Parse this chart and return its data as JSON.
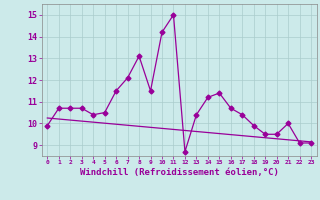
{
  "x": [
    0,
    1,
    2,
    3,
    4,
    5,
    6,
    7,
    8,
    9,
    10,
    11,
    12,
    13,
    14,
    15,
    16,
    17,
    18,
    19,
    20,
    21,
    22,
    23
  ],
  "y": [
    9.9,
    10.7,
    10.7,
    10.7,
    10.4,
    10.5,
    11.5,
    12.1,
    13.1,
    11.5,
    14.2,
    15.0,
    8.7,
    10.4,
    11.2,
    11.4,
    10.7,
    10.4,
    9.9,
    9.5,
    9.5,
    10.0,
    9.1,
    9.1
  ],
  "trend_x": [
    0,
    23
  ],
  "trend_y": [
    10.25,
    9.15
  ],
  "line_color": "#990099",
  "trend_color": "#990099",
  "bg_color": "#cceaea",
  "grid_color": "#aacccc",
  "xlabel": "Windchill (Refroidissement éolien,°C)",
  "ylabel_ticks": [
    9,
    10,
    11,
    12,
    13,
    14,
    15
  ],
  "xlim": [
    -0.5,
    23.5
  ],
  "ylim": [
    8.5,
    15.5
  ],
  "marker": "D",
  "markersize": 2.5,
  "linewidth": 0.9
}
